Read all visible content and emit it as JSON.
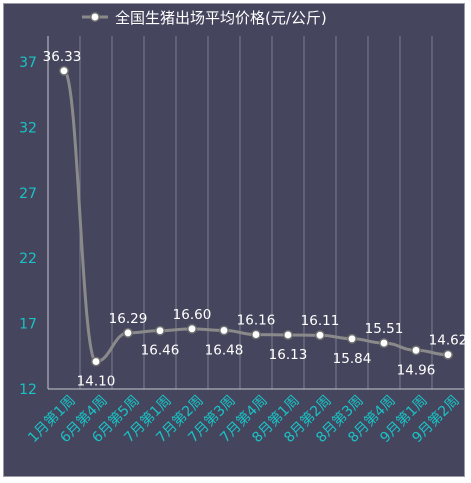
{
  "chart_data": {
    "type": "line",
    "title": "",
    "xlabel": "",
    "ylabel": "",
    "ylim": [
      12,
      37
    ],
    "yticks": [
      12,
      17,
      22,
      27,
      32,
      37
    ],
    "grid": "vertical",
    "legend_placement": "top",
    "categories": [
      "1月第1周",
      "6月第4周",
      "6月第5周",
      "7月第1周",
      "7月第2周",
      "7月第3周",
      "7月第4周",
      "8月第1周",
      "8月第2周",
      "8月第3周",
      "8月第4周",
      "9月第1周",
      "9月第2周"
    ],
    "series": [
      {
        "name": "全国生猪出场平均价格(元/公斤)",
        "values": [
          36.33,
          14.1,
          16.29,
          16.46,
          16.6,
          16.48,
          16.16,
          16.13,
          16.11,
          15.84,
          15.51,
          14.96,
          14.62
        ],
        "labels": [
          "36.33",
          "14.10",
          "16.29",
          "16.46",
          "16.60",
          "16.48",
          "16.16",
          "16.13",
          "16.11",
          "15.84",
          "15.51",
          "14.96",
          "14.62"
        ],
        "label_pos": [
          "above",
          "below",
          "above",
          "below",
          "above",
          "below",
          "above",
          "below",
          "above",
          "below",
          "above",
          "below",
          "above"
        ]
      }
    ],
    "colors": {
      "background": "#45455d",
      "line": "#8a8a8a",
      "marker_fill": "#ffffff",
      "marker_stroke": "#6e6e6e",
      "tick_text": "#19c3c6",
      "label_text": "#ffffff",
      "grid": "#8c8c9e",
      "axis": "#c8c8d0"
    }
  }
}
